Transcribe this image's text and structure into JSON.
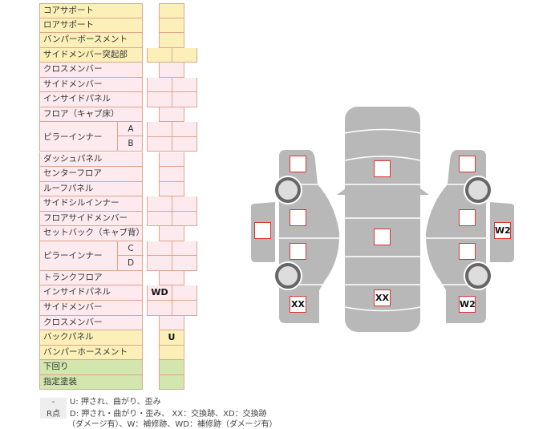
{
  "rows": [
    {
      "label": "コアサポート",
      "color": "yellow",
      "type": "single",
      "marks": [
        ""
      ]
    },
    {
      "label": "ロアサポート",
      "color": "yellow",
      "type": "single",
      "marks": [
        ""
      ]
    },
    {
      "label": "バンパーボースメント",
      "color": "yellow",
      "type": "single",
      "marks": [
        ""
      ]
    },
    {
      "label": "サイドメンバー突起部",
      "color": "yellow",
      "type": "double",
      "marks": [
        "",
        ""
      ]
    },
    {
      "label": "クロスメンバー",
      "color": "pink",
      "type": "single",
      "marks": [
        ""
      ]
    },
    {
      "label": "サイドメンバー",
      "color": "pink",
      "type": "double",
      "marks": [
        "",
        ""
      ]
    },
    {
      "label": "インサイドパネル",
      "color": "pink",
      "type": "double",
      "marks": [
        "",
        ""
      ]
    },
    {
      "label": "フロア（キャブ床）",
      "color": "pink",
      "type": "single",
      "marks": [
        ""
      ]
    },
    {
      "label": "ピラーインナー",
      "sub": "A",
      "color": "pink",
      "type": "double",
      "marks": [
        "",
        ""
      ]
    },
    {
      "label": "ピラーインナー",
      "sub": "B",
      "color": "pink",
      "type": "double",
      "marks": [
        "",
        ""
      ]
    },
    {
      "label": "ダッシュパネル",
      "color": "pink",
      "type": "single",
      "marks": [
        ""
      ]
    },
    {
      "label": "センターフロア",
      "color": "pink",
      "type": "single",
      "marks": [
        ""
      ]
    },
    {
      "label": "ルーフパネル",
      "color": "pink",
      "type": "single",
      "marks": [
        ""
      ]
    },
    {
      "label": "サイドシルインナー",
      "color": "pink",
      "type": "double",
      "marks": [
        "",
        ""
      ]
    },
    {
      "label": "フロアサイドメンバー",
      "color": "pink",
      "type": "double",
      "marks": [
        "",
        ""
      ]
    },
    {
      "label": "セットバック（キャブ背）",
      "color": "pink",
      "type": "single",
      "marks": [
        ""
      ]
    },
    {
      "label": "ピラーインナー",
      "sub": "C",
      "color": "pink",
      "type": "double",
      "marks": [
        "",
        ""
      ]
    },
    {
      "label": "ピラーインナー",
      "sub": "D",
      "color": "pink",
      "type": "double",
      "marks": [
        "",
        ""
      ]
    },
    {
      "label": "トランクフロア",
      "color": "pink",
      "type": "single",
      "marks": [
        ""
      ]
    },
    {
      "label": "インサイドパネル",
      "color": "pink",
      "type": "double",
      "marks": [
        "WD",
        ""
      ]
    },
    {
      "label": "サイドメンバー",
      "color": "pink",
      "type": "double",
      "marks": [
        "",
        ""
      ]
    },
    {
      "label": "クロスメンバー",
      "color": "pink",
      "type": "single",
      "marks": [
        ""
      ]
    },
    {
      "label": "バックパネル",
      "color": "yellow",
      "type": "single",
      "marks": [
        "U"
      ]
    },
    {
      "label": "バンパーホースメント",
      "color": "yellow",
      "type": "single",
      "marks": [
        ""
      ]
    },
    {
      "label": "下回り",
      "color": "green",
      "type": "single",
      "marks": [
        ""
      ]
    },
    {
      "label": "指定塗装",
      "color": "green",
      "type": "single",
      "marks": [
        ""
      ]
    }
  ],
  "legend": [
    {
      "key": "-",
      "text": "U: 押され、曲がり、歪み"
    },
    {
      "key": "R点",
      "text": "D: 押され・曲がり・歪み、 XX：交換跡、XD：交換跡"
    },
    {
      "key": "",
      "text": "（ダメージ有）、W：補修跡、WD：補修跡（ダメージ有）"
    }
  ],
  "diagram": {
    "left": [
      "",
      "",
      "",
      "",
      "XX"
    ],
    "center": [
      "",
      "",
      "XX"
    ],
    "right": [
      "",
      "",
      "",
      "W2",
      "W2"
    ]
  },
  "colors": {
    "yellow": "#fcf0b8",
    "pink": "#fdeaee",
    "green": "#d3e6ad",
    "border": "#dca58f",
    "body": "#b8b8b8",
    "mark_border": "#dd3333"
  }
}
